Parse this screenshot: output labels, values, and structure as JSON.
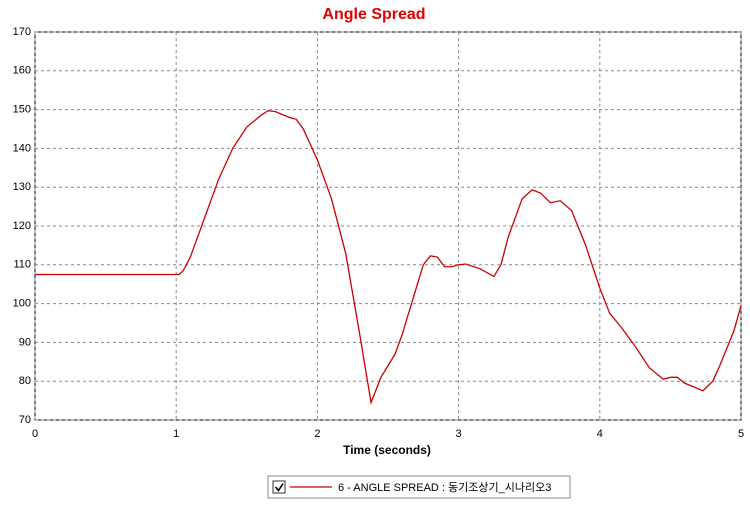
{
  "chart_data": {
    "type": "line",
    "title": "Angle Spread",
    "x_label": "Time (seconds)",
    "x": [
      0,
      1.0,
      1.02,
      1.05,
      1.1,
      1.2,
      1.3,
      1.4,
      1.5,
      1.6,
      1.65,
      1.7,
      1.8,
      1.85,
      1.9,
      2.0,
      2.1,
      2.2,
      2.3,
      2.38,
      2.45,
      2.55,
      2.6,
      2.7,
      2.75,
      2.8,
      2.85,
      2.9,
      2.95,
      3.0,
      3.05,
      3.15,
      3.25,
      3.3,
      3.35,
      3.45,
      3.52,
      3.58,
      3.65,
      3.72,
      3.8,
      3.9,
      4.0,
      4.07,
      4.15,
      4.25,
      4.35,
      4.45,
      4.5,
      4.55,
      4.6,
      4.7,
      4.73,
      4.8,
      4.85,
      4.95,
      5.0
    ],
    "series": [
      {
        "name": "6 - ANGLE SPREAD : 동기조상기_시나리오3",
        "color": "#cc0000",
        "values": [
          107.5,
          107.5,
          107.5,
          108.5,
          112,
          122,
          132,
          140,
          145.5,
          148.5,
          149.7,
          149.5,
          148,
          147.5,
          145,
          137,
          127,
          113,
          92,
          74.5,
          81,
          87,
          92,
          104,
          110,
          112.3,
          112,
          109.5,
          109.5,
          110,
          110.2,
          109,
          107,
          110,
          117,
          127,
          129.3,
          128.5,
          126,
          126.5,
          124,
          115,
          104,
          97.5,
          94,
          89,
          83.5,
          80.5,
          81,
          81,
          79.5,
          78,
          77.5,
          80,
          84,
          93,
          99.5
        ]
      }
    ],
    "xlim": [
      0,
      5
    ],
    "ylim": [
      70,
      170
    ],
    "xticks": [
      0,
      1,
      2,
      3,
      4,
      5
    ],
    "yticks": [
      70,
      80,
      90,
      100,
      110,
      120,
      130,
      140,
      150,
      160,
      170
    ],
    "grid": true
  }
}
